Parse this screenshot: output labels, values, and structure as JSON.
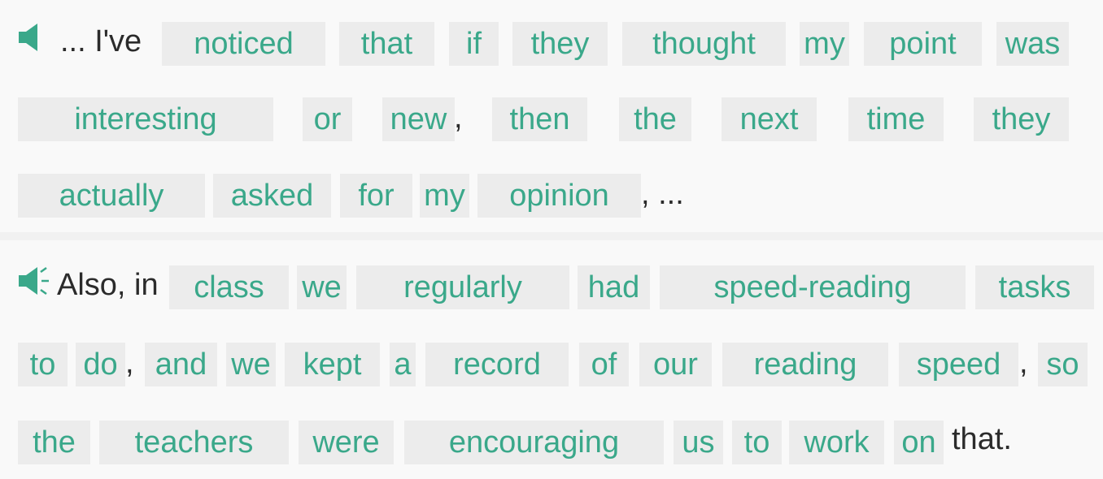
{
  "paragraphs": [
    {
      "audio_icon": "speaker-icon",
      "leading_text": "... I've",
      "words": [
        "noticed",
        "that",
        "if",
        "they",
        "thought",
        "my",
        "point",
        "was",
        "interesting",
        "or",
        "new",
        "then",
        "the",
        "next",
        "time",
        "they",
        "actually",
        "asked",
        "for",
        "my",
        "opinion"
      ],
      "punct": [
        ",",
        ", ..."
      ]
    },
    {
      "audio_icon": "speaker-playing-icon",
      "leading_text": "Also, in",
      "words": [
        "class",
        "we",
        "regularly",
        "had",
        "speed-reading",
        "tasks",
        "to",
        "do",
        "and",
        "we",
        "kept",
        "a",
        "record",
        "of",
        "our",
        "reading",
        "speed",
        "so",
        "the",
        "teachers",
        "were",
        "encouraging",
        "us",
        "to",
        "work",
        "on"
      ],
      "punct": [
        ",",
        ","
      ],
      "trailing_text": "that."
    }
  ],
  "colors": {
    "word_text": "#3aa88a",
    "word_bg": "#ececec",
    "plain_text": "#2b2b2b",
    "icon": "#3aa88a"
  }
}
